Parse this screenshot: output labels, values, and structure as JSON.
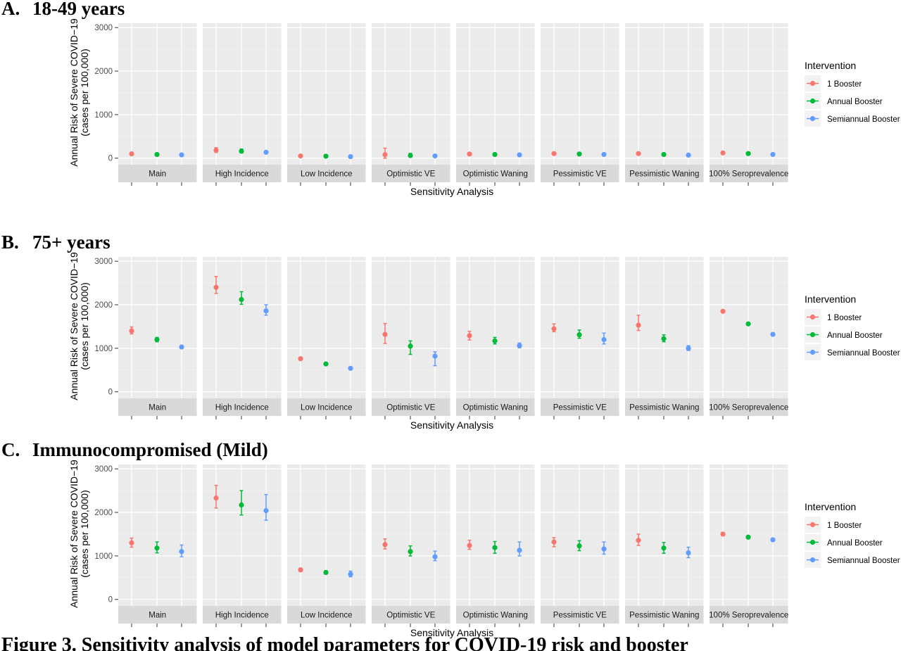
{
  "figure_caption": "Figure 3. Sensitivity analysis of model parameters for COVID-19 risk and booster",
  "colors": {
    "1 Booster": "#F8766D",
    "Annual Booster": "#00BA38",
    "Semiannual Booster": "#619CFF"
  },
  "chart_data": [
    {
      "type": "scatter",
      "panel_label": "A.",
      "title": "18-49 years",
      "xlabel": "Sensitivity Analysis",
      "ylabel": "Annual Risk of Severe COVID−19",
      "ylabel2": "(cases per 100,000)",
      "ylim": [
        -150,
        3100
      ],
      "yticks": [
        0,
        1000,
        2000,
        3000
      ],
      "grid": true,
      "legend": {
        "title": "Intervention",
        "position": "right",
        "entries": [
          "1 Booster",
          "Annual Booster",
          "Semiannual Booster"
        ]
      },
      "facets": [
        "Main",
        "High Incidence",
        "Low Incidence",
        "Optimistic VE",
        "Optimistic Waning",
        "Pessimistic VE",
        "Pessimistic Waning",
        "100% Seroprevalence"
      ],
      "series": [
        {
          "name": "1 Booster",
          "y": [
            100,
            180,
            50,
            80,
            95,
            105,
            105,
            120
          ],
          "lower": [
            85,
            130,
            40,
            0,
            80,
            90,
            90,
            105
          ],
          "upper": [
            115,
            240,
            60,
            230,
            110,
            120,
            125,
            135
          ]
        },
        {
          "name": "Annual Booster",
          "y": [
            85,
            160,
            45,
            60,
            85,
            95,
            85,
            105
          ],
          "lower": [
            70,
            120,
            35,
            20,
            70,
            80,
            70,
            90
          ],
          "upper": [
            100,
            210,
            55,
            110,
            100,
            110,
            100,
            120
          ]
        },
        {
          "name": "Semiannual Booster",
          "y": [
            75,
            135,
            35,
            50,
            75,
            85,
            70,
            85
          ],
          "lower": [
            60,
            115,
            25,
            35,
            60,
            70,
            55,
            70
          ],
          "upper": [
            90,
            155,
            45,
            65,
            90,
            100,
            85,
            100
          ]
        }
      ]
    },
    {
      "type": "scatter",
      "panel_label": "B.",
      "title": "75+ years",
      "xlabel": "Sensitivity Analysis",
      "ylabel": "Annual Risk of Severe COVID−19",
      "ylabel2": "(cases per 100,000)",
      "ylim": [
        -150,
        3100
      ],
      "yticks": [
        0,
        1000,
        2000,
        3000
      ],
      "grid": true,
      "legend": {
        "title": "Intervention",
        "position": "right",
        "entries": [
          "1 Booster",
          "Annual Booster",
          "Semiannual Booster"
        ]
      },
      "facets": [
        "Main",
        "High Incidence",
        "Low Incidence",
        "Optimistic VE",
        "Optimistic Waning",
        "Pessimistic VE",
        "Pessimistic Waning",
        "100% Seroprevalence"
      ],
      "series": [
        {
          "name": "1 Booster",
          "y": [
            1400,
            2400,
            760,
            1320,
            1290,
            1450,
            1530,
            1850
          ],
          "lower": [
            1330,
            2260,
            740,
            1110,
            1190,
            1380,
            1410,
            1830
          ],
          "upper": [
            1490,
            2650,
            780,
            1570,
            1390,
            1560,
            1760,
            1870
          ]
        },
        {
          "name": "Annual Booster",
          "y": [
            1200,
            2120,
            640,
            1050,
            1170,
            1310,
            1220,
            1560
          ],
          "lower": [
            1150,
            2010,
            620,
            860,
            1100,
            1230,
            1150,
            1540
          ],
          "upper": [
            1250,
            2300,
            660,
            1170,
            1250,
            1420,
            1310,
            1580
          ]
        },
        {
          "name": "Semiannual Booster",
          "y": [
            1030,
            1860,
            540,
            820,
            1060,
            1200,
            1000,
            1320
          ],
          "lower": [
            1000,
            1760,
            520,
            600,
            1010,
            1100,
            950,
            1300
          ],
          "upper": [
            1060,
            2000,
            560,
            920,
            1120,
            1350,
            1060,
            1340
          ]
        }
      ]
    },
    {
      "type": "scatter",
      "panel_label": "C.",
      "title": "Immunocompromised (Mild)",
      "xlabel": "Sensitivity Analysis",
      "ylabel": "Annual Risk of Severe COVID−19",
      "ylabel2": "(cases per 100,000)",
      "ylim": [
        -150,
        3100
      ],
      "yticks": [
        0,
        1000,
        2000,
        3000
      ],
      "grid": true,
      "legend": {
        "title": "Intervention",
        "position": "right",
        "entries": [
          "1 Booster",
          "Annual Booster",
          "Semiannual Booster"
        ]
      },
      "facets": [
        "Main",
        "High Incidence",
        "Low Incidence",
        "Optimistic VE",
        "Optimistic Waning",
        "Pessimistic VE",
        "Pessimistic Waning",
        "100% Seroprevalence"
      ],
      "series": [
        {
          "name": "1 Booster",
          "y": [
            1300,
            2330,
            680,
            1260,
            1240,
            1320,
            1360,
            1500
          ],
          "lower": [
            1200,
            2100,
            640,
            1160,
            1150,
            1210,
            1240,
            1460
          ],
          "upper": [
            1410,
            2620,
            720,
            1390,
            1360,
            1420,
            1500,
            1540
          ]
        },
        {
          "name": "Annual Booster",
          "y": [
            1180,
            2170,
            620,
            1100,
            1190,
            1230,
            1180,
            1430
          ],
          "lower": [
            1070,
            1940,
            580,
            1000,
            1060,
            1120,
            1060,
            1400
          ],
          "upper": [
            1320,
            2500,
            660,
            1230,
            1330,
            1350,
            1310,
            1460
          ]
        },
        {
          "name": "Semiannual Booster",
          "y": [
            1100,
            2040,
            580,
            980,
            1130,
            1160,
            1070,
            1370
          ],
          "lower": [
            980,
            1820,
            520,
            890,
            1000,
            1040,
            960,
            1340
          ],
          "upper": [
            1250,
            2410,
            650,
            1110,
            1320,
            1320,
            1200,
            1400
          ]
        }
      ]
    }
  ]
}
